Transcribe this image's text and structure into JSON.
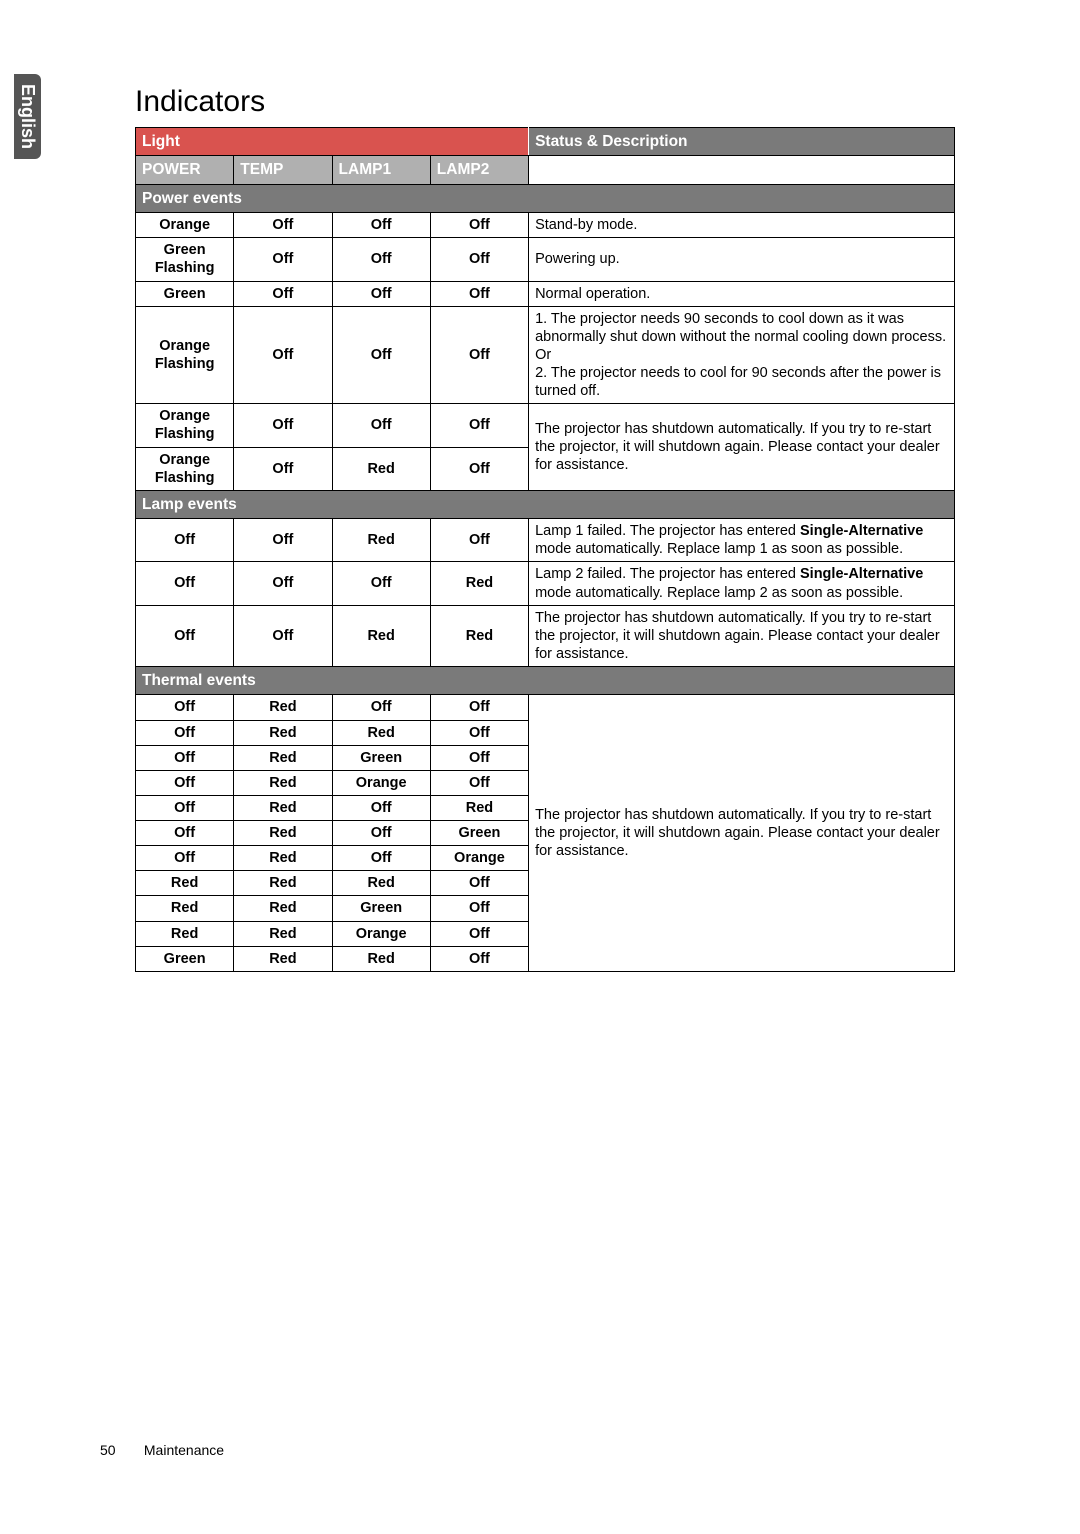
{
  "lang_tab": "English",
  "title": "Indicators",
  "colors": {
    "hdr_light_bg": "#d9534f",
    "hdr_status_bg": "#7a7a7a",
    "hdr_sub_bg": "#b0b0b0",
    "section_bg": "#7a7a7a",
    "border": "#000000"
  },
  "col_widths": [
    "12%",
    "12%",
    "12%",
    "12%",
    "52%"
  ],
  "hdr_top": {
    "light": "Light",
    "status": "Status & Description"
  },
  "hdr_sub": [
    "POWER",
    "TEMP",
    "LAMP1",
    "LAMP2"
  ],
  "sections": {
    "power": "Power events",
    "lamp": "Lamp events",
    "thermal": "Thermal events"
  },
  "power_rows": [
    {
      "cells": [
        "Orange",
        "Off",
        "Off",
        "Off"
      ],
      "desc": "Stand-by mode."
    },
    {
      "cells": [
        "Green Flashing",
        "Off",
        "Off",
        "Off"
      ],
      "desc": "Powering up."
    },
    {
      "cells": [
        "Green",
        "Off",
        "Off",
        "Off"
      ],
      "desc": "Normal operation."
    },
    {
      "cells": [
        "Orange Flashing",
        "Off",
        "Off",
        "Off"
      ],
      "desc_lines": [
        "1.    The projector needs 90 seconds to cool down as it was abnormally shut down without the normal cooling down process. Or",
        "2.    The projector needs to cool for 90 seconds after the power is turned off."
      ]
    },
    {
      "cells": [
        "Orange Flashing",
        "Off",
        "Off",
        "Off"
      ],
      "desc": "The projector has shutdown automatically. If you try to re-start the projector, it will shutdown again. Please contact your dealer for assistance.",
      "rowspan_desc_with_next": true
    },
    {
      "cells": [
        "Orange Flashing",
        "Off",
        "Red",
        "Off"
      ]
    }
  ],
  "lamp_rows": [
    {
      "cells": [
        "Off",
        "Off",
        "Red",
        "Off"
      ],
      "desc_html": "Lamp 1 failed. The projector has entered <b>Single-Alternative</b> mode automatically. Replace lamp 1 as soon as possible."
    },
    {
      "cells": [
        "Off",
        "Off",
        "Off",
        "Red"
      ],
      "desc_html": "Lamp 2 failed. The projector has entered <b>Single-Alternative</b> mode automatically. Replace lamp 2 as soon as possible."
    },
    {
      "cells": [
        "Off",
        "Off",
        "Red",
        "Red"
      ],
      "desc": "The projector has shutdown automatically. If you try to re-start the projector, it will shutdown again. Please contact your dealer for assistance."
    }
  ],
  "thermal_rows": [
    {
      "cells": [
        "Off",
        "Red",
        "Off",
        "Off"
      ]
    },
    {
      "cells": [
        "Off",
        "Red",
        "Red",
        "Off"
      ]
    },
    {
      "cells": [
        "Off",
        "Red",
        "Green",
        "Off"
      ]
    },
    {
      "cells": [
        "Off",
        "Red",
        "Orange",
        "Off"
      ]
    },
    {
      "cells": [
        "Off",
        "Red",
        "Off",
        "Red"
      ]
    },
    {
      "cells": [
        "Off",
        "Red",
        "Off",
        "Green"
      ]
    },
    {
      "cells": [
        "Off",
        "Red",
        "Off",
        "Orange"
      ]
    },
    {
      "cells": [
        "Red",
        "Red",
        "Red",
        "Off"
      ]
    },
    {
      "cells": [
        "Red",
        "Red",
        "Green",
        "Off"
      ]
    },
    {
      "cells": [
        "Red",
        "Red",
        "Orange",
        "Off"
      ]
    },
    {
      "cells": [
        "Green",
        "Red",
        "Red",
        "Off"
      ]
    }
  ],
  "thermal_desc": "The projector has shutdown automatically. If you try to re-start the projector, it will shutdown again. Please contact your dealer for assistance.",
  "footer": {
    "page": "50",
    "label": "Maintenance"
  }
}
